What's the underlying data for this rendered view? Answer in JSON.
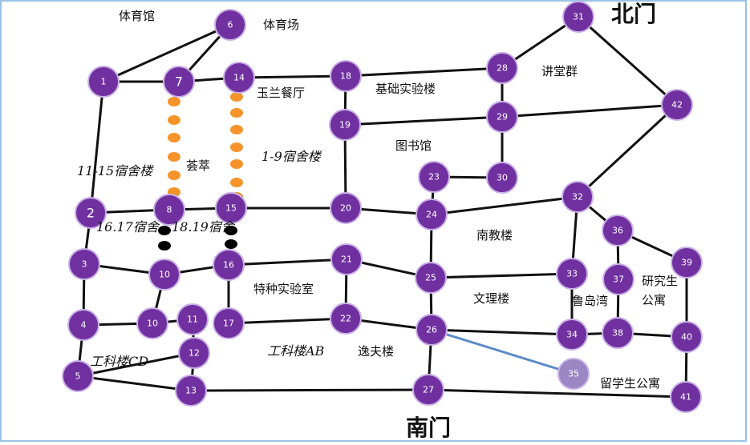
{
  "colors": {
    "node": "#7030a0",
    "node_stroke": "#c9b0e6",
    "road": "#111111",
    "highlight_edge": "#5b8ac7",
    "orange_dot": "#f6932b",
    "black_dot": "#000000",
    "faded_node": "#9a87c3"
  },
  "gates": {
    "north": "北门",
    "south": "南门"
  },
  "areas": [
    "体育馆",
    "体育场",
    "玉兰餐厅",
    "基础实验楼",
    "讲堂群",
    "图书馆",
    "11-15宿舍楼",
    "荟萃",
    "1-9宿舍楼",
    "南教楼",
    "16.17宿舍",
    "18.19宿舍",
    "特种实验室",
    "文理楼",
    "鲁岛湾",
    "研究生",
    "公寓",
    "工科楼CD",
    "工科楼AB",
    "逸夫楼",
    "留学生公寓"
  ],
  "nodes": [
    "1",
    "7",
    "14",
    "6",
    "18",
    "28",
    "31",
    "42",
    "19",
    "29",
    "30",
    "23",
    "24",
    "2",
    "8",
    "15",
    "20",
    "32",
    "36",
    "3",
    "10",
    "16",
    "21",
    "25",
    "33",
    "37",
    "39",
    "4",
    "10",
    "17",
    "11",
    "22",
    "26",
    "34",
    "38",
    "40",
    "12",
    "5",
    "13",
    "27",
    "35",
    "41"
  ]
}
